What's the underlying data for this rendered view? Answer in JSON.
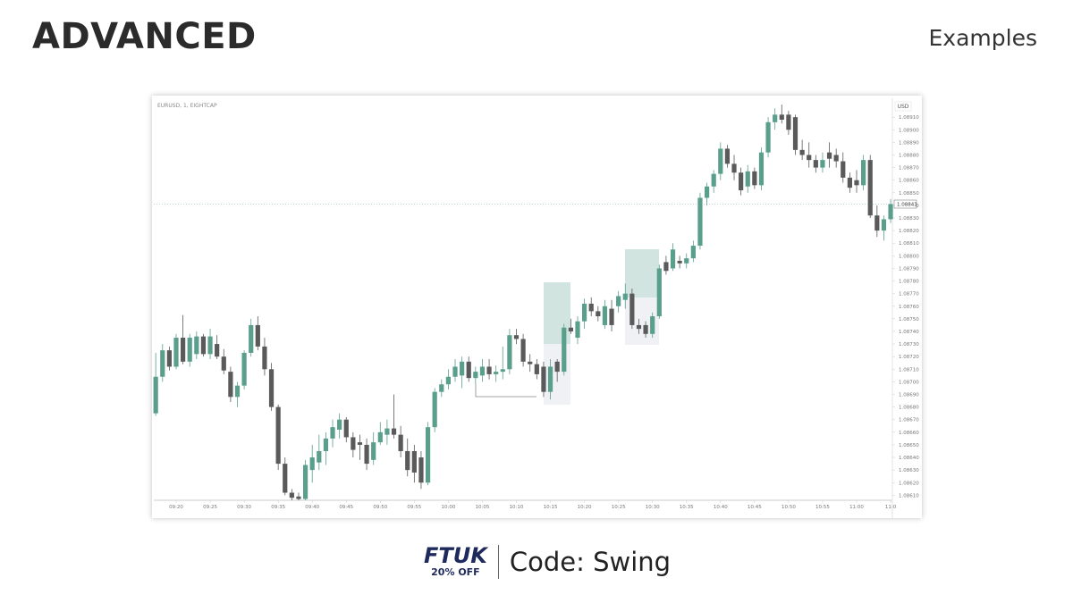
{
  "header": {
    "title": "ADVANCED",
    "subtitle": "Examples"
  },
  "footer": {
    "logo": "FTUK",
    "discount": "20% OFF",
    "code": "Code: Swing"
  },
  "chart_data": {
    "type": "candlestick",
    "title": "EURUSD, 1, EIGHTCAP",
    "y_axis_label": "USD",
    "up_color": "#5a9e8c",
    "down_color": "#5a5a5a",
    "x": [
      "09:17",
      "09:18",
      "09:19",
      "09:20",
      "09:21",
      "09:22",
      "09:23",
      "09:24",
      "09:25",
      "09:26",
      "09:27",
      "09:28",
      "09:29",
      "09:30",
      "09:31",
      "09:32",
      "09:33",
      "09:34",
      "09:35",
      "09:36",
      "09:37",
      "09:38",
      "09:39",
      "09:40",
      "09:41",
      "09:42",
      "09:43",
      "09:44",
      "09:45",
      "09:46",
      "09:47",
      "09:48",
      "09:49",
      "09:50",
      "09:51",
      "09:52",
      "09:53",
      "09:54",
      "09:55",
      "09:56",
      "09:57",
      "09:58",
      "09:59",
      "10:00",
      "10:01",
      "10:02",
      "10:03",
      "10:04",
      "10:05",
      "10:06",
      "10:07",
      "10:08",
      "10:09",
      "10:10",
      "10:11",
      "10:12",
      "10:13",
      "10:14",
      "10:15",
      "10:16",
      "10:17",
      "10:18",
      "10:19",
      "10:20",
      "10:21",
      "10:22",
      "10:23",
      "10:24",
      "10:25",
      "10:26",
      "10:27",
      "10:28",
      "10:29",
      "10:30",
      "10:31",
      "10:32",
      "10:33",
      "10:34",
      "10:35",
      "10:36",
      "10:37",
      "10:38",
      "10:39",
      "10:40",
      "10:41",
      "10:42",
      "10:43",
      "10:44",
      "10:45",
      "10:46",
      "10:47",
      "10:48",
      "10:49",
      "10:50",
      "10:51",
      "10:52",
      "10:53",
      "10:54",
      "10:55",
      "10:56",
      "10:57",
      "10:58",
      "10:59",
      "11:00",
      "11:01",
      "11:02",
      "11:03",
      "11:04",
      "11:05"
    ],
    "open": [
      1.08675,
      1.08704,
      1.08725,
      1.08712,
      1.08735,
      1.08716,
      1.08722,
      1.08736,
      1.08722,
      1.0873,
      1.0872,
      1.08708,
      1.08688,
      1.08697,
      1.08723,
      1.08745,
      1.08728,
      1.0871,
      1.0868,
      1.08635,
      1.08612,
      1.08609,
      1.08607,
      1.0863,
      1.08636,
      1.08645,
      1.08655,
      1.08662,
      1.0867,
      1.08656,
      1.08652,
      1.0865,
      1.08638,
      1.08652,
      1.08658,
      1.08663,
      1.08658,
      1.08645,
      1.08645,
      1.0864,
      1.0862,
      1.08664,
      1.08692,
      1.08698,
      1.08704,
      1.08705,
      1.08716,
      1.08703,
      1.08705,
      1.08712,
      1.08706,
      1.08708,
      1.0871,
      1.08737,
      1.08734,
      1.08716,
      1.08714,
      1.08712,
      1.08692,
      1.08716,
      1.08708,
      1.08743,
      1.08735,
      1.08748,
      1.08762,
      1.08756,
      1.08745,
      1.08758,
      1.0876,
      1.08765,
      1.0877,
      1.08745,
      1.08745,
      1.08738,
      1.08752,
      1.08795,
      1.0879,
      1.08796,
      1.08794,
      1.08798,
      1.08808,
      1.08846,
      1.08855,
      1.08865,
      1.08885,
      1.08873,
      1.08866,
      1.08855,
      1.08867,
      1.08856,
      1.08882,
      1.08906,
      1.08912,
      1.08912,
      1.0891,
      1.08884,
      1.0888,
      1.08876,
      1.0887,
      1.08882,
      1.0888,
      1.08875,
      1.08862,
      1.0886,
      1.08856,
      1.08876,
      1.08832,
      1.0882,
      1.08829
    ],
    "high": [
      1.08723,
      1.0873,
      1.08728,
      1.08738,
      1.08753,
      1.08738,
      1.0874,
      1.08738,
      1.08742,
      1.08737,
      1.08726,
      1.08712,
      1.087,
      1.08725,
      1.0875,
      1.08752,
      1.08735,
      1.08715,
      1.08682,
      1.0864,
      1.08615,
      1.08612,
      1.08638,
      1.0865,
      1.08658,
      1.0866,
      1.0867,
      1.08675,
      1.08672,
      1.0866,
      1.08658,
      1.08655,
      1.0866,
      1.08668,
      1.0867,
      1.0869,
      1.08665,
      1.08655,
      1.0865,
      1.08645,
      1.08668,
      1.08695,
      1.08702,
      1.0871,
      1.08718,
      1.0872,
      1.0872,
      1.08712,
      1.08718,
      1.08718,
      1.08713,
      1.08728,
      1.08742,
      1.08742,
      1.08738,
      1.08722,
      1.08718,
      1.08716,
      1.08718,
      1.08718,
      1.08746,
      1.0875,
      1.08752,
      1.08766,
      1.08767,
      1.0876,
      1.08765,
      1.08765,
      1.08772,
      1.08778,
      1.08774,
      1.0875,
      1.08748,
      1.08755,
      1.08793,
      1.088,
      1.0881,
      1.088,
      1.08802,
      1.08812,
      1.0885,
      1.08858,
      1.08868,
      1.0889,
      1.08888,
      1.0888,
      1.0887,
      1.08872,
      1.0887,
      1.08886,
      1.0891,
      1.08917,
      1.0892,
      1.08915,
      1.08912,
      1.08892,
      1.0889,
      1.0888,
      1.08882,
      1.0889,
      1.08885,
      1.08882,
      1.08866,
      1.08868,
      1.0888,
      1.0888,
      1.0884,
      1.08832,
      1.08845
    ],
    "low": [
      1.08673,
      1.087,
      1.08709,
      1.0871,
      1.08714,
      1.08712,
      1.08718,
      1.0872,
      1.08718,
      1.08718,
      1.08706,
      1.08684,
      1.0868,
      1.08694,
      1.0872,
      1.08725,
      1.08705,
      1.08677,
      1.0863,
      1.0861,
      1.08606,
      1.08606,
      1.08606,
      1.0862,
      1.0863,
      1.08634,
      1.08648,
      1.08655,
      1.08652,
      1.0864,
      1.08638,
      1.0863,
      1.08634,
      1.0865,
      1.0865,
      1.08655,
      1.0864,
      1.08625,
      1.0862,
      1.08615,
      1.08618,
      1.0866,
      1.08688,
      1.08694,
      1.087,
      1.08695,
      1.087,
      1.08698,
      1.087,
      1.08702,
      1.087,
      1.08702,
      1.08706,
      1.0873,
      1.08712,
      1.08708,
      1.08702,
      1.08688,
      1.08686,
      1.087,
      1.08705,
      1.08738,
      1.0873,
      1.08742,
      1.08752,
      1.08748,
      1.08742,
      1.0874,
      1.08755,
      1.08758,
      1.08742,
      1.08738,
      1.08735,
      1.08735,
      1.0875,
      1.08785,
      1.08788,
      1.0879,
      1.0879,
      1.08795,
      1.08805,
      1.0884,
      1.0885,
      1.0886,
      1.0887,
      1.0886,
      1.08848,
      1.0885,
      1.08853,
      1.08852,
      1.08878,
      1.089,
      1.08905,
      1.08896,
      1.0888,
      1.08876,
      1.0887,
      1.08866,
      1.08866,
      1.0887,
      1.0887,
      1.08858,
      1.0885,
      1.0885,
      1.08852,
      1.0883,
      1.08815,
      1.08812,
      1.08826
    ],
    "close": [
      1.08704,
      1.08725,
      1.08712,
      1.08735,
      1.08716,
      1.08735,
      1.08736,
      1.08722,
      1.08736,
      1.0872,
      1.08709,
      1.08688,
      1.08697,
      1.08723,
      1.08745,
      1.08728,
      1.0871,
      1.0868,
      1.08635,
      1.08612,
      1.08608,
      1.08607,
      1.08634,
      1.0864,
      1.08645,
      1.08655,
      1.08664,
      1.0867,
      1.08656,
      1.08646,
      1.0865,
      1.08635,
      1.08652,
      1.0866,
      1.08663,
      1.08658,
      1.08645,
      1.0863,
      1.08628,
      1.0862,
      1.08664,
      1.08692,
      1.08698,
      1.08704,
      1.08712,
      1.08716,
      1.08703,
      1.08708,
      1.08712,
      1.08706,
      1.08708,
      1.0871,
      1.08737,
      1.08734,
      1.08716,
      1.08714,
      1.08706,
      1.08692,
      1.08712,
      1.08708,
      1.08743,
      1.0874,
      1.08748,
      1.08762,
      1.08756,
      1.08752,
      1.0876,
      1.08745,
      1.08768,
      1.0877,
      1.08745,
      1.08742,
      1.08738,
      1.08752,
      1.0879,
      1.08788,
      1.08805,
      1.08794,
      1.08798,
      1.08808,
      1.08846,
      1.08855,
      1.08865,
      1.08885,
      1.08873,
      1.08866,
      1.08852,
      1.08867,
      1.08856,
      1.08882,
      1.08906,
      1.08912,
      1.08908,
      1.089,
      1.08884,
      1.0888,
      1.08876,
      1.0887,
      1.08876,
      1.08877,
      1.08875,
      1.08862,
      1.08854,
      1.08856,
      1.08876,
      1.08832,
      1.0882,
      1.08829,
      1.08841
    ],
    "xticks": [
      "09:20",
      "09:25",
      "09:30",
      "09:35",
      "09:40",
      "09:45",
      "09:50",
      "09:55",
      "10:00",
      "10:05",
      "10:10",
      "10:15",
      "10:20",
      "10:25",
      "10:30",
      "10:35",
      "10:40",
      "10:45",
      "10:50",
      "10:55",
      "11:00",
      {
        "value": "11:05",
        "label": "11:0"
      }
    ],
    "ylim": [
      1.08606,
      1.08925
    ],
    "yticks": [
      {
        "value": 1.0861,
        "label": "1.08610"
      },
      {
        "value": 1.0862,
        "label": "1.08620"
      },
      {
        "value": 1.0863,
        "label": "1.08630"
      },
      {
        "value": 1.0864,
        "label": "1.08640"
      },
      {
        "value": 1.0865,
        "label": "1.08650"
      },
      {
        "value": 1.0866,
        "label": "1.08660"
      },
      {
        "value": 1.0867,
        "label": "1.08670"
      },
      {
        "value": 1.0868,
        "label": "1.08680"
      },
      {
        "value": 1.0869,
        "label": "1.08690"
      },
      {
        "value": 1.087,
        "label": "1.08700"
      },
      {
        "value": 1.0871,
        "label": "1.08710"
      },
      {
        "value": 1.0872,
        "label": "1.08720"
      },
      {
        "value": 1.0873,
        "label": "1.08730"
      },
      {
        "value": 1.0874,
        "label": "1.08740"
      },
      {
        "value": 1.0875,
        "label": "1.08750"
      },
      {
        "value": 1.0876,
        "label": "1.08760"
      },
      {
        "value": 1.0877,
        "label": "1.08770"
      },
      {
        "value": 1.0878,
        "label": "1.08780"
      },
      {
        "value": 1.0879,
        "label": "1.08790"
      },
      {
        "value": 1.088,
        "label": "1.08800"
      },
      {
        "value": 1.0881,
        "label": "1.08810"
      },
      {
        "value": 1.0882,
        "label": "1.08820"
      },
      {
        "value": 1.0883,
        "label": "1.08830"
      },
      {
        "value": 1.0884,
        "label": "1.08840"
      },
      {
        "value": 1.0885,
        "label": "1.08850"
      },
      {
        "value": 1.0886,
        "label": "1.08860"
      },
      {
        "value": 1.0887,
        "label": "1.08870"
      },
      {
        "value": 1.0888,
        "label": "1.08880"
      },
      {
        "value": 1.0889,
        "label": "1.08890"
      },
      {
        "value": 1.089,
        "label": "1.08900"
      },
      {
        "value": 1.0891,
        "label": "1.08910"
      }
    ]
  }
}
